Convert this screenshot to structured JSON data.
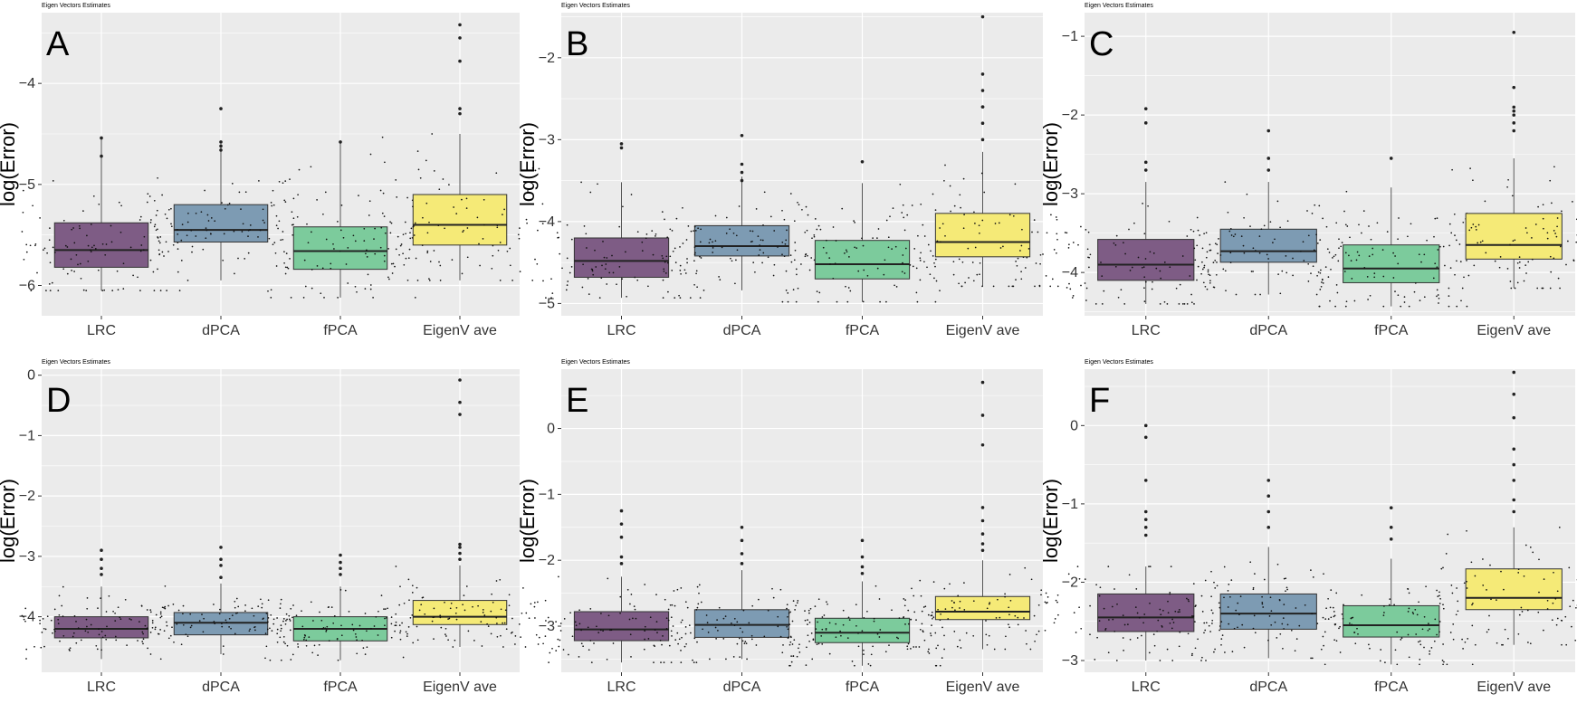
{
  "figure": {
    "common_title": "Eigen Vectors Estimates",
    "ylabel": "log(Error)",
    "categories": [
      "LRC",
      "dPCA",
      "fPCA",
      "EigenV ave"
    ],
    "colors": {
      "background": "#ebebeb",
      "grid": "#ffffff",
      "LRC": "#7e5c85",
      "dPCA": "#7d9bb3",
      "fPCA": "#7ccb9c",
      "EigenV ave": "#f5ea77"
    }
  },
  "chart_data": [
    {
      "type": "box",
      "panel": "A",
      "title": "Eigen Vectors Estimates",
      "ylabel": "log(Error)",
      "ylim": [
        -6.3,
        -3.3
      ],
      "yticks": [
        -6,
        -5,
        -4
      ],
      "boxes": [
        {
          "category": "LRC",
          "whisker_low": -6.05,
          "q1": -5.82,
          "median": -5.65,
          "q3": -5.38,
          "whisker_high": -4.54,
          "outliers": [
            -4.72,
            -4.54
          ]
        },
        {
          "category": "dPCA",
          "whisker_low": -5.95,
          "q1": -5.57,
          "median": -5.45,
          "q3": -5.2,
          "whisker_high": -4.6,
          "outliers": [
            -4.25,
            -4.58,
            -4.62,
            -4.66
          ]
        },
        {
          "category": "fPCA",
          "whisker_low": -6.12,
          "q1": -5.84,
          "median": -5.66,
          "q3": -5.42,
          "whisker_high": -4.58,
          "outliers": [
            -4.58
          ]
        },
        {
          "category": "EigenV ave",
          "whisker_low": -5.95,
          "q1": -5.6,
          "median": -5.4,
          "q3": -5.1,
          "whisker_high": -4.5,
          "outliers": [
            -3.42,
            -3.55,
            -3.78,
            -4.25,
            -4.3
          ]
        }
      ]
    },
    {
      "type": "box",
      "panel": "B",
      "title": "Eigen Vectors Estimates",
      "ylabel": "log(Error)",
      "ylim": [
        -5.15,
        -1.45
      ],
      "yticks": [
        -5,
        -4,
        -3,
        -2
      ],
      "boxes": [
        {
          "category": "LRC",
          "whisker_low": -4.93,
          "q1": -4.68,
          "median": -4.48,
          "q3": -4.2,
          "whisker_high": -3.52,
          "outliers": [
            -3.05,
            -3.1
          ]
        },
        {
          "category": "dPCA",
          "whisker_low": -4.84,
          "q1": -4.42,
          "median": -4.3,
          "q3": -4.05,
          "whisker_high": -3.45,
          "outliers": [
            -2.95,
            -3.3,
            -3.4,
            -3.5
          ]
        },
        {
          "category": "fPCA",
          "whisker_low": -4.98,
          "q1": -4.7,
          "median": -4.52,
          "q3": -4.23,
          "whisker_high": -3.53,
          "outliers": [
            -3.27
          ]
        },
        {
          "category": "EigenV ave",
          "whisker_low": -4.79,
          "q1": -4.43,
          "median": -4.25,
          "q3": -3.9,
          "whisker_high": -3.15,
          "outliers": [
            -1.5,
            -2.2,
            -2.4,
            -2.6,
            -2.6,
            -2.8,
            -3.0
          ]
        }
      ]
    },
    {
      "type": "box",
      "panel": "C",
      "title": "Eigen Vectors Estimates",
      "ylabel": "log(Error)",
      "ylim": [
        -4.55,
        -0.7
      ],
      "yticks": [
        -4,
        -3,
        -2,
        -1
      ],
      "boxes": [
        {
          "category": "LRC",
          "whisker_low": -4.4,
          "q1": -4.1,
          "median": -3.9,
          "q3": -3.58,
          "whisker_high": -2.85,
          "outliers": [
            -1.92,
            -2.1,
            -2.6,
            -2.7
          ]
        },
        {
          "category": "dPCA",
          "whisker_low": -4.28,
          "q1": -3.87,
          "median": -3.73,
          "q3": -3.45,
          "whisker_high": -2.85,
          "outliers": [
            -2.2,
            -2.55,
            -2.7
          ]
        },
        {
          "category": "fPCA",
          "whisker_low": -4.43,
          "q1": -4.13,
          "median": -3.95,
          "q3": -3.65,
          "whisker_high": -2.92,
          "outliers": [
            -2.55
          ]
        },
        {
          "category": "EigenV ave",
          "whisker_low": -4.2,
          "q1": -3.83,
          "median": -3.65,
          "q3": -3.25,
          "whisker_high": -2.55,
          "outliers": [
            -0.95,
            -1.65,
            -1.9,
            -1.95,
            -2.0,
            -2.1,
            -2.2
          ]
        }
      ]
    },
    {
      "type": "box",
      "panel": "D",
      "title": "Eigen Vectors Estimates",
      "ylabel": "log(Error)",
      "ylim": [
        -4.92,
        0.1
      ],
      "yticks": [
        -4,
        -3,
        -2,
        -1,
        0
      ],
      "boxes": [
        {
          "category": "LRC",
          "whisker_low": -4.7,
          "q1": -4.35,
          "median": -4.2,
          "q3": -4.0,
          "whisker_high": -3.5,
          "outliers": [
            -2.9,
            -3.05,
            -3.2,
            -3.3
          ]
        },
        {
          "category": "dPCA",
          "whisker_low": -4.62,
          "q1": -4.3,
          "median": -4.1,
          "q3": -3.93,
          "whisker_high": -3.45,
          "outliers": [
            -2.85,
            -3.05,
            -3.15,
            -3.35
          ]
        },
        {
          "category": "fPCA",
          "whisker_low": -4.72,
          "q1": -4.4,
          "median": -4.2,
          "q3": -4.0,
          "whisker_high": -3.5,
          "outliers": [
            -2.98,
            -3.1,
            -3.2,
            -3.3
          ]
        },
        {
          "category": "EigenV ave",
          "whisker_low": -4.5,
          "q1": -4.13,
          "median": -4.0,
          "q3": -3.73,
          "whisker_high": -3.15,
          "outliers": [
            -0.08,
            -0.45,
            -0.65,
            -2.8,
            -2.85,
            -2.95,
            -3.05
          ]
        }
      ]
    },
    {
      "type": "box",
      "panel": "E",
      "title": "Eigen Vectors Estimates",
      "ylabel": "log(Error)",
      "ylim": [
        -3.7,
        0.9
      ],
      "yticks": [
        -3,
        -2,
        -1,
        0
      ],
      "boxes": [
        {
          "category": "LRC",
          "whisker_low": -3.55,
          "q1": -3.22,
          "median": -3.05,
          "q3": -2.78,
          "whisker_high": -2.25,
          "outliers": [
            -1.25,
            -1.45,
            -1.65,
            -1.95,
            -2.05
          ]
        },
        {
          "category": "dPCA",
          "whisker_low": -3.5,
          "q1": -3.17,
          "median": -2.98,
          "q3": -2.75,
          "whisker_high": -2.15,
          "outliers": [
            -1.5,
            -1.7,
            -1.9,
            -2.05
          ]
        },
        {
          "category": "fPCA",
          "whisker_low": -3.6,
          "q1": -3.25,
          "median": -3.1,
          "q3": -2.88,
          "whisker_high": -2.32,
          "outliers": [
            -1.7,
            -1.95,
            -2.1,
            -2.2
          ]
        },
        {
          "category": "EigenV ave",
          "whisker_low": -3.35,
          "q1": -2.9,
          "median": -2.78,
          "q3": -2.55,
          "whisker_high": -2.0,
          "outliers": [
            0.7,
            0.2,
            -0.25,
            -1.2,
            -1.4,
            -1.6,
            -1.75,
            -1.85
          ]
        }
      ]
    },
    {
      "type": "box",
      "panel": "F",
      "title": "Eigen Vectors Estimates",
      "ylabel": "log(Error)",
      "ylim": [
        -3.15,
        0.72
      ],
      "yticks": [
        -3,
        -2,
        -1,
        0
      ],
      "boxes": [
        {
          "category": "LRC",
          "whisker_low": -3.0,
          "q1": -2.63,
          "median": -2.45,
          "q3": -2.15,
          "whisker_high": -1.8,
          "outliers": [
            0.0,
            -0.15,
            -0.7,
            -1.1,
            -1.2,
            -1.3,
            -1.4
          ]
        },
        {
          "category": "dPCA",
          "whisker_low": -2.97,
          "q1": -2.6,
          "median": -2.4,
          "q3": -2.15,
          "whisker_high": -1.55,
          "outliers": [
            -0.7,
            -0.9,
            -1.1,
            -1.3
          ]
        },
        {
          "category": "fPCA",
          "whisker_low": -3.05,
          "q1": -2.7,
          "median": -2.55,
          "q3": -2.3,
          "whisker_high": -1.7,
          "outliers": [
            -1.05,
            -1.3,
            -1.45
          ]
        },
        {
          "category": "EigenV ave",
          "whisker_low": -2.8,
          "q1": -2.35,
          "median": -2.2,
          "q3": -1.83,
          "whisker_high": -1.3,
          "outliers": [
            0.68,
            0.4,
            0.1,
            -0.3,
            -0.5,
            -0.7,
            -0.95,
            -1.1
          ]
        }
      ]
    }
  ]
}
